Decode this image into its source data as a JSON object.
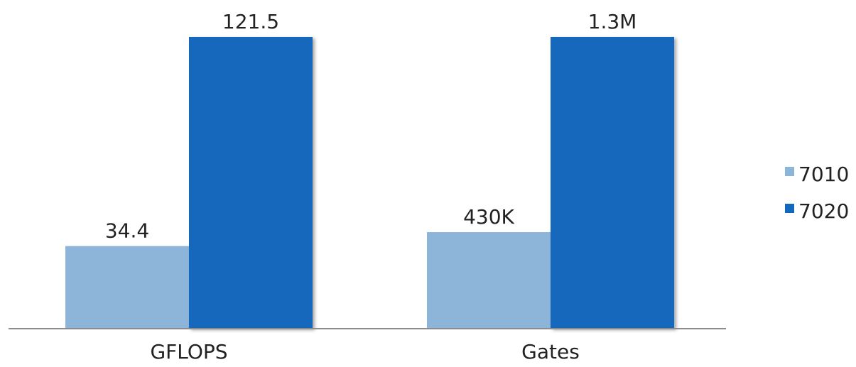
{
  "chart_data": {
    "type": "bar",
    "title": "",
    "xlabel": "",
    "ylabel": "",
    "grid": false,
    "legend_position": "right",
    "groups": [
      {
        "category": "GFLOPS",
        "bars": [
          {
            "series": "7010",
            "value": 34.4,
            "label": "34.4"
          },
          {
            "series": "7020",
            "value": 121.5,
            "label": "121.5"
          }
        ]
      },
      {
        "category": "Gates",
        "bars": [
          {
            "series": "7010",
            "value": 430000,
            "label": "430K"
          },
          {
            "series": "7020",
            "value": 1300000,
            "label": "1.3M"
          }
        ]
      }
    ],
    "series": [
      {
        "name": "7010",
        "color": "#8db4d9"
      },
      {
        "name": "7020",
        "color": "#1268bd"
      }
    ]
  }
}
